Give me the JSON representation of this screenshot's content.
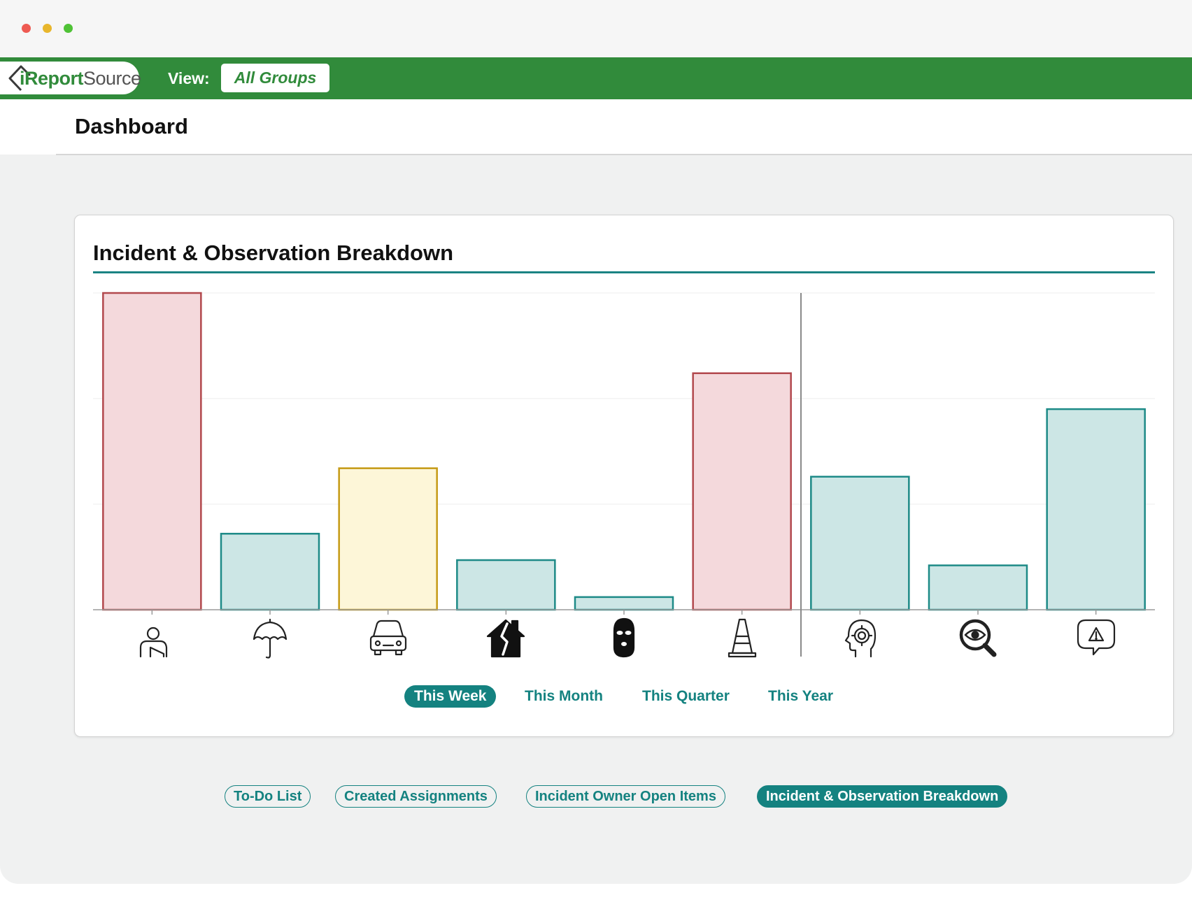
{
  "app": {
    "logo_text_green": "iReport",
    "logo_text_gray": "Source"
  },
  "nav": {
    "view_label": "View:",
    "view_value": "All Groups"
  },
  "page": {
    "title": "Dashboard"
  },
  "card": {
    "title": "Incident & Observation Breakdown"
  },
  "periods": [
    {
      "label": "This Week",
      "active": true
    },
    {
      "label": "This Month",
      "active": false
    },
    {
      "label": "This Quarter",
      "active": false
    },
    {
      "label": "This Year",
      "active": false
    }
  ],
  "tabs": [
    {
      "label": "To-Do List",
      "active": false
    },
    {
      "label": "Created Assignments",
      "active": false
    },
    {
      "label": "Incident Owner Open Items",
      "active": false
    },
    {
      "label": "Incident & Observation Breakdown",
      "active": true
    }
  ],
  "colors": {
    "brand_green": "#318b3b",
    "accent_teal": "#148280",
    "red_stroke": "#b2484d",
    "red_fill": "#f4d9dc",
    "yellow_stroke": "#c59a15",
    "yellow_fill": "#fdf6d8",
    "teal_stroke": "#1d8a87",
    "teal_fill": "#cce6e5"
  },
  "chart_data": {
    "type": "bar",
    "categories": [
      "injury-icon",
      "umbrella-icon",
      "car-icon",
      "damaged-house-icon",
      "balaclava-icon",
      "traffic-cone-icon",
      "head-gear-icon",
      "search-eye-icon",
      "alert-bubble-icon"
    ],
    "values": [
      3,
      0.72,
      1.34,
      0.47,
      0.12,
      2.24,
      1.26,
      0.42,
      1.9
    ],
    "color_groups": [
      "red",
      "teal",
      "yellow",
      "teal",
      "teal",
      "red",
      "teal",
      "teal",
      "teal"
    ],
    "ylim": [
      0,
      3
    ],
    "grid": true,
    "separator_after_index": 5,
    "title": "",
    "xlabel": "",
    "ylabel": ""
  }
}
